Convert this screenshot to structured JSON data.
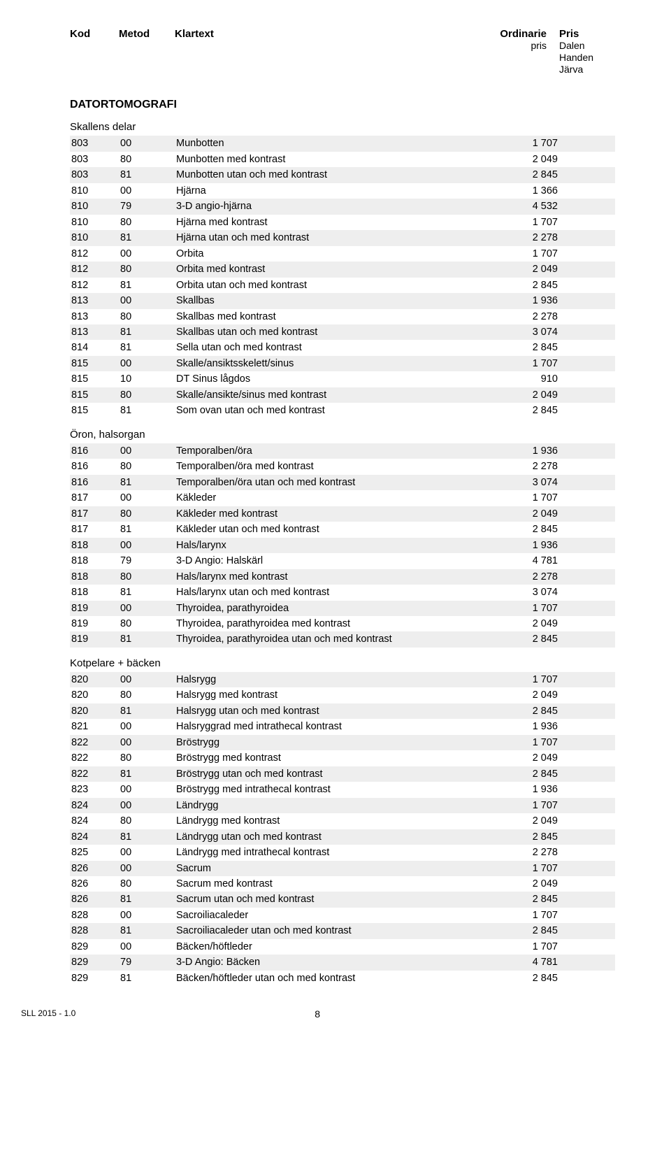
{
  "header": {
    "kod": "Kod",
    "metod": "Metod",
    "klartext": "Klartext",
    "pris1_line1": "Ordinarie",
    "pris1_line2": "pris",
    "pris2_line1": "Pris",
    "pris2_line2": "Dalen",
    "pris2_line3": "Handen",
    "pris2_line4": "Järva"
  },
  "colors": {
    "row_shade": "#eeeeee",
    "background": "#ffffff",
    "text": "#000000"
  },
  "main_title": "DATORTOMOGRAFI",
  "sections": [
    {
      "title": "Skallens delar",
      "rows": [
        {
          "kod": "803",
          "metod": "00",
          "text": "Munbotten",
          "pris": "1 707"
        },
        {
          "kod": "803",
          "metod": "80",
          "text": "Munbotten med kontrast",
          "pris": "2 049"
        },
        {
          "kod": "803",
          "metod": "81",
          "text": "Munbotten utan och med kontrast",
          "pris": "2 845"
        },
        {
          "kod": "810",
          "metod": "00",
          "text": "Hjärna",
          "pris": "1 366"
        },
        {
          "kod": "810",
          "metod": "79",
          "text": "3-D angio-hjärna",
          "pris": "4 532"
        },
        {
          "kod": "810",
          "metod": "80",
          "text": "Hjärna med kontrast",
          "pris": "1 707"
        },
        {
          "kod": "810",
          "metod": "81",
          "text": "Hjärna utan och med kontrast",
          "pris": "2 278"
        },
        {
          "kod": "812",
          "metod": "00",
          "text": "Orbita",
          "pris": "1 707"
        },
        {
          "kod": "812",
          "metod": "80",
          "text": "Orbita med kontrast",
          "pris": "2 049"
        },
        {
          "kod": "812",
          "metod": "81",
          "text": "Orbita utan och med kontrast",
          "pris": "2 845"
        },
        {
          "kod": "813",
          "metod": "00",
          "text": "Skallbas",
          "pris": "1 936"
        },
        {
          "kod": "813",
          "metod": "80",
          "text": "Skallbas med kontrast",
          "pris": "2 278"
        },
        {
          "kod": "813",
          "metod": "81",
          "text": "Skallbas utan och med kontrast",
          "pris": "3 074"
        },
        {
          "kod": "814",
          "metod": "81",
          "text": "Sella utan och med kontrast",
          "pris": "2 845"
        },
        {
          "kod": "815",
          "metod": "00",
          "text": "Skalle/ansiktsskelett/sinus",
          "pris": "1 707"
        },
        {
          "kod": "815",
          "metod": "10",
          "text": "DT Sinus lågdos",
          "pris": "910"
        },
        {
          "kod": "815",
          "metod": "80",
          "text": "Skalle/ansikte/sinus med kontrast",
          "pris": "2 049"
        },
        {
          "kod": "815",
          "metod": "81",
          "text": "Som ovan utan och med kontrast",
          "pris": "2 845"
        }
      ]
    },
    {
      "title": "Öron, halsorgan",
      "rows": [
        {
          "kod": "816",
          "metod": "00",
          "text": "Temporalben/öra",
          "pris": "1 936"
        },
        {
          "kod": "816",
          "metod": "80",
          "text": "Temporalben/öra med kontrast",
          "pris": "2 278"
        },
        {
          "kod": "816",
          "metod": "81",
          "text": "Temporalben/öra utan och med kontrast",
          "pris": "3 074"
        },
        {
          "kod": "817",
          "metod": "00",
          "text": "Käkleder",
          "pris": "1 707"
        },
        {
          "kod": "817",
          "metod": "80",
          "text": "Käkleder med kontrast",
          "pris": "2 049"
        },
        {
          "kod": "817",
          "metod": "81",
          "text": "Käkleder utan och med kontrast",
          "pris": "2 845"
        },
        {
          "kod": "818",
          "metod": "00",
          "text": "Hals/larynx",
          "pris": "1 936"
        },
        {
          "kod": "818",
          "metod": "79",
          "text": "3-D Angio: Halskärl",
          "pris": "4 781"
        },
        {
          "kod": "818",
          "metod": "80",
          "text": "Hals/larynx med kontrast",
          "pris": "2 278"
        },
        {
          "kod": "818",
          "metod": "81",
          "text": "Hals/larynx utan och med kontrast",
          "pris": "3 074"
        },
        {
          "kod": "819",
          "metod": "00",
          "text": "Thyroidea, parathyroidea",
          "pris": "1 707"
        },
        {
          "kod": "819",
          "metod": "80",
          "text": "Thyroidea, parathyroidea med kontrast",
          "pris": "2 049"
        },
        {
          "kod": "819",
          "metod": "81",
          "text": "Thyroidea, parathyroidea utan och med kontrast",
          "pris": "2 845"
        }
      ]
    },
    {
      "title": "Kotpelare + bäcken",
      "rows": [
        {
          "kod": "820",
          "metod": "00",
          "text": "Halsrygg",
          "pris": "1 707"
        },
        {
          "kod": "820",
          "metod": "80",
          "text": "Halsrygg med kontrast",
          "pris": "2 049"
        },
        {
          "kod": "820",
          "metod": "81",
          "text": "Halsrygg utan och med kontrast",
          "pris": "2 845"
        },
        {
          "kod": "821",
          "metod": "00",
          "text": "Halsryggrad med intrathecal kontrast",
          "pris": "1 936"
        },
        {
          "kod": "822",
          "metod": "00",
          "text": "Bröstrygg",
          "pris": "1 707"
        },
        {
          "kod": "822",
          "metod": "80",
          "text": "Bröstrygg med kontrast",
          "pris": "2 049"
        },
        {
          "kod": "822",
          "metod": "81",
          "text": "Bröstrygg utan och med kontrast",
          "pris": "2 845"
        },
        {
          "kod": "823",
          "metod": "00",
          "text": "Bröstrygg med intrathecal kontrast",
          "pris": "1 936"
        },
        {
          "kod": "824",
          "metod": "00",
          "text": "Ländrygg",
          "pris": "1 707"
        },
        {
          "kod": "824",
          "metod": "80",
          "text": "Ländrygg med kontrast",
          "pris": "2 049"
        },
        {
          "kod": "824",
          "metod": "81",
          "text": "Ländrygg utan och med kontrast",
          "pris": "2 845"
        },
        {
          "kod": "825",
          "metod": "00",
          "text": "Ländrygg med intrathecal kontrast",
          "pris": "2 278"
        },
        {
          "kod": "826",
          "metod": "00",
          "text": "Sacrum",
          "pris": "1 707"
        },
        {
          "kod": "826",
          "metod": "80",
          "text": "Sacrum med kontrast",
          "pris": "2 049"
        },
        {
          "kod": "826",
          "metod": "81",
          "text": "Sacrum utan och med kontrast",
          "pris": "2 845"
        },
        {
          "kod": "828",
          "metod": "00",
          "text": "Sacroiliacaleder",
          "pris": "1 707"
        },
        {
          "kod": "828",
          "metod": "81",
          "text": "Sacroiliacaleder utan och med kontrast",
          "pris": "2 845"
        },
        {
          "kod": "829",
          "metod": "00",
          "text": "Bäcken/höftleder",
          "pris": "1 707"
        },
        {
          "kod": "829",
          "metod": "79",
          "text": "3-D Angio: Bäcken",
          "pris": "4 781"
        },
        {
          "kod": "829",
          "metod": "81",
          "text": "Bäcken/höftleder utan och med kontrast",
          "pris": "2 845"
        }
      ]
    }
  ],
  "footer": {
    "left": "SLL 2015 - 1.0",
    "page": "8"
  }
}
